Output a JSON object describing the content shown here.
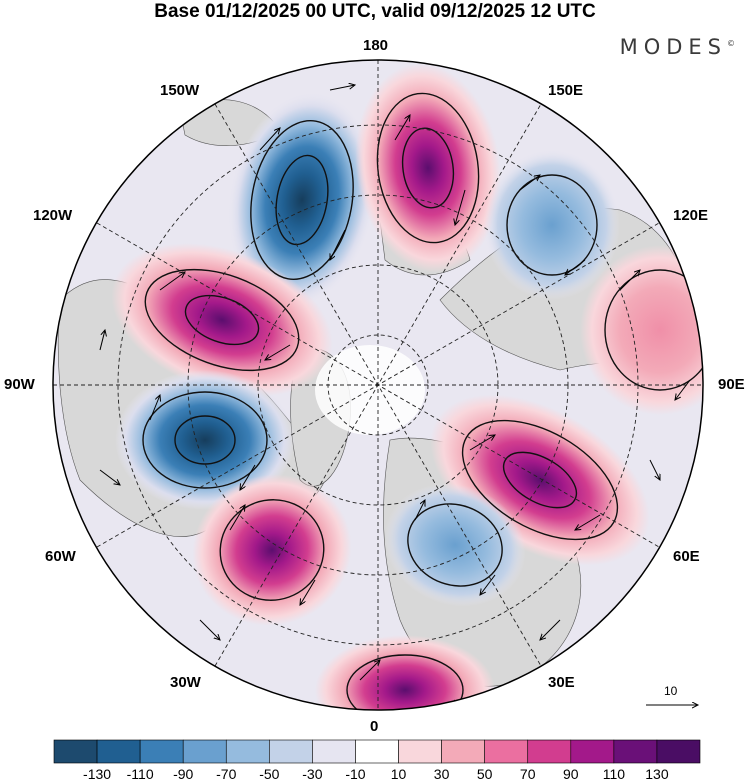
{
  "header": {
    "title": "Base 01/12/2025 00 UTC, valid 09/12/2025 12 UTC",
    "brand": "MODES",
    "brand_mark": "©"
  },
  "map": {
    "projection": "north-polar-stereographic",
    "lon_labels": {
      "top": "180",
      "bottom": "0",
      "left": "90W",
      "right": "90E",
      "upper_left_1": "150W",
      "upper_left_2": "120W",
      "lower_left_1": "60W",
      "lower_left_2": "30W",
      "upper_right_1": "150E",
      "upper_right_2": "120E",
      "lower_right_1": "60E",
      "lower_right_2": "30E"
    },
    "vector_reference": {
      "value": "10"
    },
    "anomaly_centers": [
      {
        "lon": "155W",
        "sign": "negative",
        "peak": -130
      },
      {
        "lon": "165E",
        "sign": "positive",
        "peak": 110
      },
      {
        "lon": "135E",
        "sign": "negative",
        "peak": -70
      },
      {
        "lon": "105W",
        "sign": "positive",
        "peak": 120
      },
      {
        "lon": "100E",
        "sign": "positive",
        "peak": 70
      },
      {
        "lon": "75W",
        "sign": "negative",
        "peak": -120
      },
      {
        "lon": "45W",
        "sign": "positive",
        "peak": 100
      },
      {
        "lon": "60E",
        "sign": "positive",
        "peak": 110
      },
      {
        "lon": "30E",
        "sign": "negative",
        "peak": -80
      },
      {
        "lon": "0",
        "sign": "positive",
        "peak": 90
      }
    ]
  },
  "colorbar": {
    "levels": [
      "-130",
      "-110",
      "-90",
      "-70",
      "-50",
      "-30",
      "-10",
      "10",
      "30",
      "50",
      "70",
      "90",
      "110",
      "130"
    ],
    "colors": [
      "#1d4a6e",
      "#205f91",
      "#3b7fb6",
      "#6aa0cf",
      "#95bbde",
      "#c3d2e8",
      "#e6e5f1",
      "#ffffff",
      "#f9d7dc",
      "#f3aab8",
      "#eb6fa0",
      "#d23d8f",
      "#a3198a",
      "#6a1078",
      "#4a0d64"
    ]
  }
}
